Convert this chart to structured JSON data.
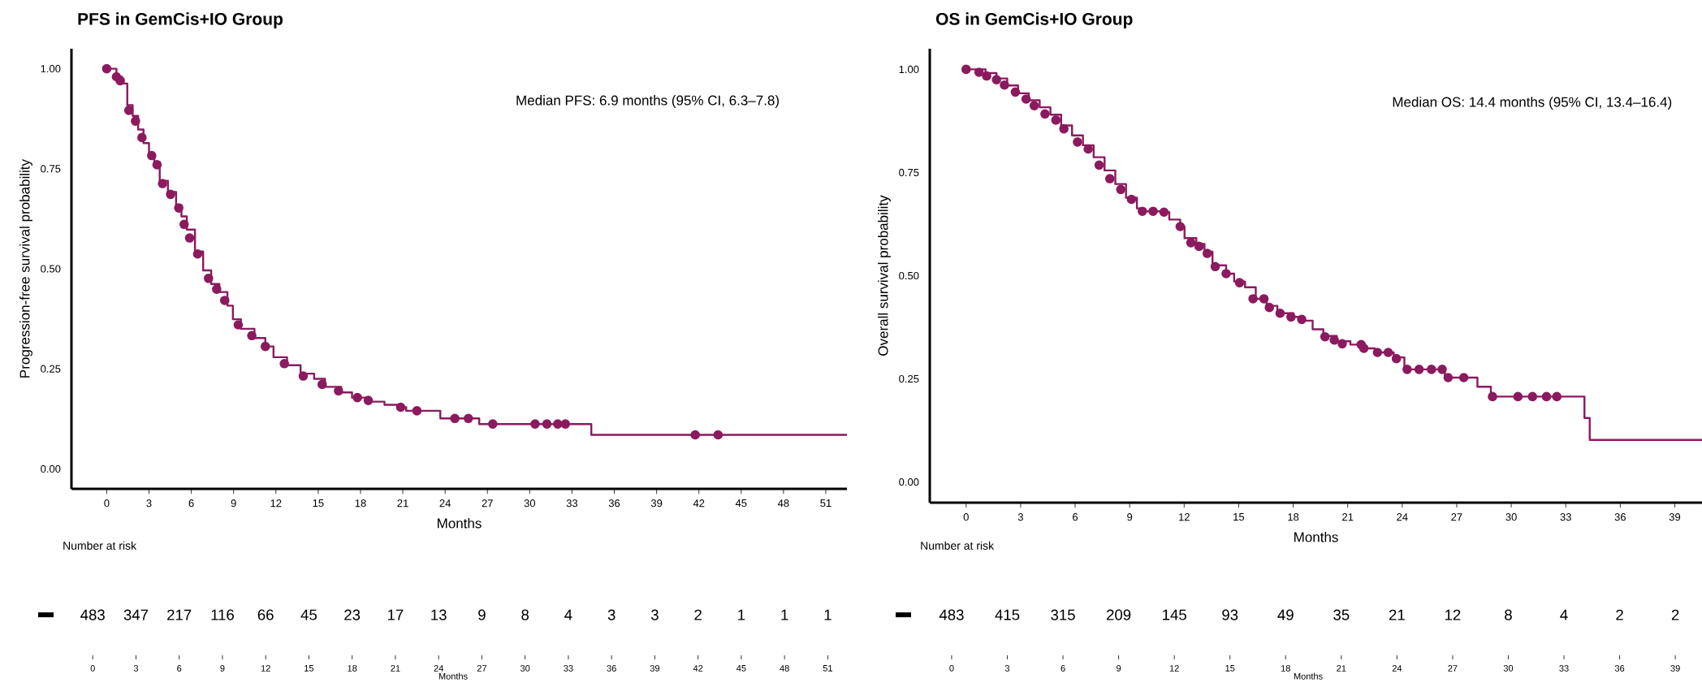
{
  "chart_data": [
    {
      "type": "step",
      "title": "PFS in GemCis+IO Group",
      "xlabel": "Months",
      "ylabel": "Progression-free survival probability",
      "annotations": [
        "Median PFS: 6.9 months (95% CI, 6.3–7.8)"
      ],
      "xlim": [
        -2.5,
        52.5
      ],
      "xticks": [
        0,
        3,
        6,
        9,
        12,
        15,
        18,
        21,
        24,
        27,
        30,
        33,
        36,
        39,
        42,
        45,
        48,
        51
      ],
      "ylim": [
        -0.05,
        1.05
      ],
      "yticks": [
        {
          "value": 0,
          "label": "0.00"
        },
        {
          "value": 0.25,
          "label": "0.25"
        },
        {
          "value": 0.5,
          "label": "0.50"
        },
        {
          "value": 0.75,
          "label": "0.75"
        },
        {
          "value": 1,
          "label": "1.00"
        }
      ],
      "series": [
        {
          "type": "step",
          "color": "#8b1a5e",
          "marker": "none",
          "line_style": "solid",
          "x": [
            0,
            0.69,
            1.08,
            1.46,
            1.84,
            2.23,
            2.61,
            3.0,
            3.38,
            3.76,
            4.34,
            4.92,
            5.3,
            5.68,
            6.26,
            6.84,
            7.41,
            7.99,
            8.56,
            8.95,
            9.52,
            10.48,
            11.25,
            11.83,
            12.79,
            13.75,
            14.71,
            15.48,
            16.63,
            17.4,
            18.55,
            19.7,
            20.85,
            21.24,
            23.66,
            26.42,
            34.37,
            52.5
          ],
          "values": [
            1.0,
            0.98,
            0.963,
            0.909,
            0.882,
            0.848,
            0.814,
            0.787,
            0.767,
            0.72,
            0.692,
            0.659,
            0.631,
            0.598,
            0.543,
            0.496,
            0.462,
            0.442,
            0.408,
            0.374,
            0.35,
            0.327,
            0.306,
            0.279,
            0.259,
            0.238,
            0.225,
            0.205,
            0.191,
            0.178,
            0.168,
            0.16,
            0.154,
            0.145,
            0.126,
            0.112,
            0.085,
            0.085
          ]
        },
        {
          "type": "scatter",
          "color": "#8b1a5e",
          "marker": "circle",
          "x": [
            0,
            0.69,
            0.96,
            1.57,
            2.04,
            2.5,
            3.19,
            3.57,
            3.96,
            4.53,
            5.11,
            5.49,
            5.88,
            6.45,
            7.22,
            7.8,
            8.37,
            9.33,
            10.29,
            11.25,
            12.6,
            13.94,
            15.28,
            16.44,
            17.78,
            18.55,
            20.85,
            22.0,
            24.69,
            25.65,
            27.38,
            30.38,
            31.22,
            31.99,
            32.53,
            41.74,
            43.36
          ],
          "values": [
            1.0,
            0.98,
            0.97,
            0.896,
            0.869,
            0.828,
            0.783,
            0.76,
            0.713,
            0.686,
            0.652,
            0.611,
            0.577,
            0.537,
            0.476,
            0.449,
            0.421,
            0.36,
            0.333,
            0.306,
            0.263,
            0.232,
            0.211,
            0.195,
            0.178,
            0.171,
            0.154,
            0.145,
            0.126,
            0.126,
            0.112,
            0.112,
            0.112,
            0.112,
            0.112,
            0.085,
            0.085
          ]
        }
      ]
    },
    {
      "type": "step",
      "title": "OS in GemCis+IO Group",
      "xlabel": "Months",
      "ylabel": "Overall survival probability",
      "annotations": [
        "Median OS: 14.4 months (95% CI, 13.4–16.4)"
      ],
      "xlim": [
        -2,
        40.5
      ],
      "xticks": [
        0,
        3,
        6,
        9,
        12,
        15,
        18,
        21,
        24,
        27,
        30,
        33,
        36,
        39
      ],
      "ylim": [
        -0.05,
        1.05
      ],
      "yticks": [
        {
          "value": 0,
          "label": "0.00"
        },
        {
          "value": 0.25,
          "label": "0.25"
        },
        {
          "value": 0.5,
          "label": "0.50"
        },
        {
          "value": 0.75,
          "label": "0.75"
        },
        {
          "value": 1,
          "label": "1.00"
        }
      ],
      "series": [
        {
          "type": "step",
          "color": "#8b1a5e",
          "marker": "none",
          "line_style": "solid",
          "x": [
            0,
            1.07,
            1.67,
            2.26,
            2.86,
            3.45,
            4.05,
            4.64,
            5.23,
            5.83,
            6.43,
            7.02,
            7.62,
            8.21,
            8.8,
            9.4,
            9.7,
            10.89,
            11.18,
            11.78,
            12.02,
            12.67,
            13.12,
            13.56,
            14.31,
            14.75,
            15.35,
            15.94,
            16.54,
            17.13,
            18.02,
            18.62,
            19.07,
            19.66,
            20.4,
            21.15,
            21.89,
            22.49,
            23.53,
            24.12,
            26.35,
            28.14,
            28.88,
            34.03,
            34.32,
            40.5
          ],
          "values": [
            1.0,
            0.991,
            0.978,
            0.961,
            0.942,
            0.925,
            0.908,
            0.89,
            0.864,
            0.84,
            0.816,
            0.787,
            0.755,
            0.722,
            0.689,
            0.663,
            0.656,
            0.654,
            0.636,
            0.619,
            0.591,
            0.577,
            0.558,
            0.525,
            0.505,
            0.486,
            0.472,
            0.444,
            0.427,
            0.409,
            0.4,
            0.391,
            0.37,
            0.354,
            0.341,
            0.333,
            0.324,
            0.314,
            0.302,
            0.273,
            0.253,
            0.231,
            0.207,
            0.155,
            0.102,
            0.102
          ]
        },
        {
          "type": "scatter",
          "color": "#8b1a5e",
          "marker": "circle",
          "x": [
            0,
            0.71,
            1.13,
            1.67,
            2.11,
            2.71,
            3.3,
            3.75,
            4.34,
            4.94,
            5.38,
            6.13,
            6.72,
            7.32,
            7.91,
            8.51,
            9.1,
            9.7,
            10.29,
            10.89,
            11.78,
            12.37,
            12.82,
            13.27,
            13.71,
            14.31,
            15.05,
            15.79,
            16.39,
            16.69,
            17.28,
            17.88,
            18.47,
            19.75,
            20.26,
            20.7,
            21.74,
            21.89,
            22.64,
            23.23,
            23.68,
            24.27,
            24.93,
            25.61,
            26.2,
            26.53,
            27.39,
            28.97,
            30.37,
            31.17,
            31.94,
            32.51
          ],
          "values": [
            1.0,
            0.993,
            0.984,
            0.975,
            0.962,
            0.945,
            0.928,
            0.912,
            0.892,
            0.877,
            0.856,
            0.824,
            0.807,
            0.768,
            0.735,
            0.709,
            0.685,
            0.656,
            0.656,
            0.654,
            0.619,
            0.58,
            0.571,
            0.554,
            0.522,
            0.505,
            0.483,
            0.444,
            0.444,
            0.423,
            0.409,
            0.4,
            0.394,
            0.352,
            0.344,
            0.335,
            0.333,
            0.324,
            0.314,
            0.314,
            0.299,
            0.273,
            0.273,
            0.273,
            0.273,
            0.253,
            0.253,
            0.207,
            0.207,
            0.207,
            0.207,
            0.207
          ]
        }
      ]
    },
    {
      "type": "heatmap",
      "title": "Number at risk",
      "xlabel": "Months",
      "data_labels": true,
      "categories": [
        "0",
        "3",
        "6",
        "9",
        "12",
        "15",
        "18",
        "21",
        "24",
        "27",
        "30",
        "33",
        "36",
        "39",
        "42",
        "45",
        "48",
        "51"
      ],
      "y_categories": [
        null
      ],
      "cells": [
        [
          483,
          347,
          217,
          116,
          66,
          45,
          23,
          17,
          13,
          9,
          8,
          4,
          3,
          3,
          2,
          1,
          1,
          1
        ]
      ]
    },
    {
      "type": "heatmap",
      "title": "Number at risk",
      "xlabel": "Months",
      "data_labels": true,
      "categories": [
        "0",
        "3",
        "6",
        "9",
        "12",
        "15",
        "18",
        "21",
        "24",
        "27",
        "30",
        "33",
        "36",
        "39"
      ],
      "y_categories": [
        null
      ],
      "cells": [
        [
          483,
          415,
          315,
          209,
          145,
          93,
          49,
          35,
          21,
          12,
          8,
          4,
          2,
          2
        ]
      ]
    }
  ]
}
